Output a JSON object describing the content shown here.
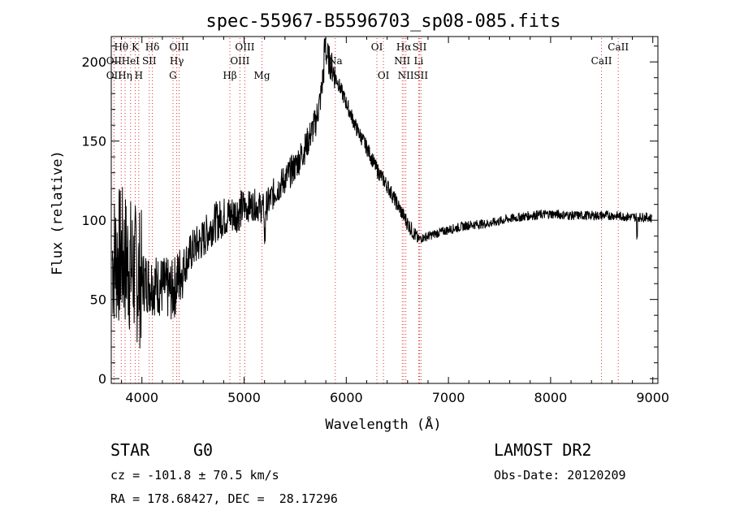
{
  "chart_data": {
    "type": "line",
    "title": "spec-55967-B5596703_sp08-085.fits",
    "xlabel": "Wavelength (Å)",
    "ylabel": "Flux (relative)",
    "xlim": [
      3700,
      9050
    ],
    "ylim": [
      -3,
      216
    ],
    "xticks": [
      4000,
      5000,
      6000,
      7000,
      8000,
      9000
    ],
    "yticks": [
      0,
      50,
      100,
      150,
      200
    ],
    "grid": false,
    "line_color": "#000000",
    "marker_color": "#e03030",
    "spectral_lines": [
      {
        "label": "Hθ",
        "x": 3798,
        "row": 1
      },
      {
        "label": "K",
        "x": 3934,
        "row": 1
      },
      {
        "label": "Hδ",
        "x": 4102,
        "row": 1
      },
      {
        "label": "OIII",
        "x": 4364,
        "row": 1
      },
      {
        "label": "OIII",
        "x": 5007,
        "row": 1
      },
      {
        "label": "OI",
        "x": 6300,
        "row": 1
      },
      {
        "label": "Hα",
        "x": 6563,
        "row": 1
      },
      {
        "label": "SII",
        "x": 6717,
        "row": 1
      },
      {
        "label": "CaII",
        "x": 8662,
        "row": 1
      },
      {
        "label": "OII",
        "x": 3727,
        "row": 2
      },
      {
        "label": "HeI",
        "x": 3889,
        "row": 2
      },
      {
        "label": "SII",
        "x": 4072,
        "row": 2
      },
      {
        "label": "Hγ",
        "x": 4341,
        "row": 2
      },
      {
        "label": "OIII",
        "x": 4959,
        "row": 2
      },
      {
        "label": "Na",
        "x": 5893,
        "row": 2
      },
      {
        "label": "NII",
        "x": 6548,
        "row": 2
      },
      {
        "label": "Li",
        "x": 6708,
        "row": 2
      },
      {
        "label": "CaII",
        "x": 8498,
        "row": 2
      },
      {
        "label": "OII",
        "x": 3727,
        "row": 3
      },
      {
        "label": "Hη",
        "x": 3835,
        "row": 3
      },
      {
        "label": "H",
        "x": 3969,
        "row": 3
      },
      {
        "label": "G",
        "x": 4304,
        "row": 3
      },
      {
        "label": "Hβ",
        "x": 4861,
        "row": 3
      },
      {
        "label": "Mg",
        "x": 5175,
        "row": 3
      },
      {
        "label": "OI",
        "x": 6364,
        "row": 3
      },
      {
        "label": "NII",
        "x": 6583,
        "row": 3
      },
      {
        "label": "SII",
        "x": 6731,
        "row": 3
      }
    ],
    "continuum": [
      [
        3700,
        75
      ],
      [
        3800,
        78
      ],
      [
        3900,
        70
      ],
      [
        4000,
        62
      ],
      [
        4100,
        60
      ],
      [
        4200,
        58
      ],
      [
        4300,
        55
      ],
      [
        4400,
        70
      ],
      [
        4500,
        82
      ],
      [
        4600,
        88
      ],
      [
        4700,
        98
      ],
      [
        4800,
        102
      ],
      [
        4900,
        104
      ],
      [
        5000,
        108
      ],
      [
        5100,
        110
      ],
      [
        5200,
        107
      ],
      [
        5300,
        118
      ],
      [
        5400,
        126
      ],
      [
        5500,
        134
      ],
      [
        5600,
        146
      ],
      [
        5700,
        162
      ],
      [
        5750,
        178
      ],
      [
        5800,
        206
      ],
      [
        5850,
        198
      ],
      [
        5900,
        190
      ],
      [
        6000,
        174
      ],
      [
        6100,
        158
      ],
      [
        6200,
        146
      ],
      [
        6300,
        132
      ],
      [
        6400,
        122
      ],
      [
        6500,
        110
      ],
      [
        6600,
        98
      ],
      [
        6700,
        88
      ],
      [
        6800,
        90
      ],
      [
        6900,
        92
      ],
      [
        7000,
        94
      ],
      [
        7200,
        97
      ],
      [
        7400,
        98
      ],
      [
        7600,
        101
      ],
      [
        7800,
        103
      ],
      [
        8000,
        104
      ],
      [
        8200,
        103
      ],
      [
        8400,
        103
      ],
      [
        8600,
        103
      ],
      [
        8800,
        102
      ],
      [
        8950,
        102
      ],
      [
        9000,
        101
      ]
    ]
  },
  "info": {
    "object_class": "STAR",
    "subclass": "G0",
    "survey": "LAMOST DR2",
    "redshift": "cz = -101.8 ± 70.5 km/s",
    "obs_date": "Obs-Date: 20120209",
    "coords": "RA = 178.68427, DEC =  28.17296"
  }
}
